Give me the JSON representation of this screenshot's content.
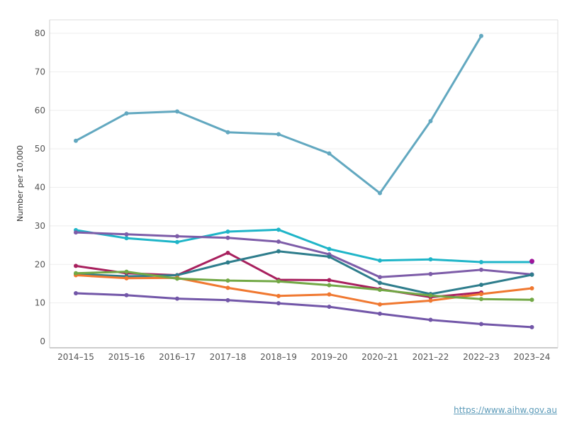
{
  "source": {
    "url": "https://www.aihw.gov.au"
  },
  "chart_data": {
    "type": "line",
    "title": "",
    "xlabel": "",
    "ylabel": "Number per 10,000",
    "ylim": [
      0,
      80
    ],
    "yticks": [
      0,
      10,
      20,
      30,
      40,
      50,
      60,
      70,
      80
    ],
    "grid": "horizontal",
    "categories": [
      "2014–15",
      "2015–16",
      "2016–17",
      "2017–18",
      "2018–19",
      "2019–20",
      "2020–21",
      "2021–22",
      "2022–23",
      "2023–24"
    ],
    "series": [
      {
        "color": "#62a8c0",
        "values": [
          52.1,
          59.2,
          59.7,
          54.3,
          53.8,
          48.8,
          38.5,
          57.2,
          79.3,
          null
        ]
      },
      {
        "color": "#1fb5c8",
        "values": [
          28.9,
          26.8,
          25.8,
          28.5,
          29.0,
          24.0,
          21.0,
          21.3,
          20.6,
          20.6
        ]
      },
      {
        "color": "#7d5ca8",
        "values": [
          28.3,
          27.8,
          27.3,
          26.9,
          25.9,
          22.6,
          16.7,
          17.5,
          18.6,
          17.4
        ]
      },
      {
        "color": "#a8205e",
        "values": [
          19.6,
          17.7,
          17.2,
          23.0,
          16.0,
          15.9,
          13.6,
          11.5,
          12.7,
          null
        ]
      },
      {
        "color": "#2e7d8c",
        "values": [
          17.5,
          16.9,
          17.2,
          20.5,
          23.4,
          22.0,
          15.2,
          12.3,
          14.7,
          17.3
        ]
      },
      {
        "color": "#f07830",
        "values": [
          17.2,
          16.4,
          16.5,
          13.9,
          11.8,
          12.2,
          9.6,
          10.6,
          12.3,
          13.8
        ]
      },
      {
        "color": "#72a845",
        "values": [
          17.7,
          18.1,
          16.3,
          15.8,
          15.6,
          14.6,
          13.4,
          11.9,
          11.0,
          10.8
        ]
      },
      {
        "color": "#7256a8",
        "values": [
          12.5,
          12.0,
          11.1,
          10.7,
          9.9,
          9.0,
          7.2,
          5.6,
          4.5,
          3.7
        ]
      }
    ],
    "extra_points": [
      {
        "x": "2023–24",
        "y": 20.8,
        "color": "#a0159a"
      }
    ]
  }
}
